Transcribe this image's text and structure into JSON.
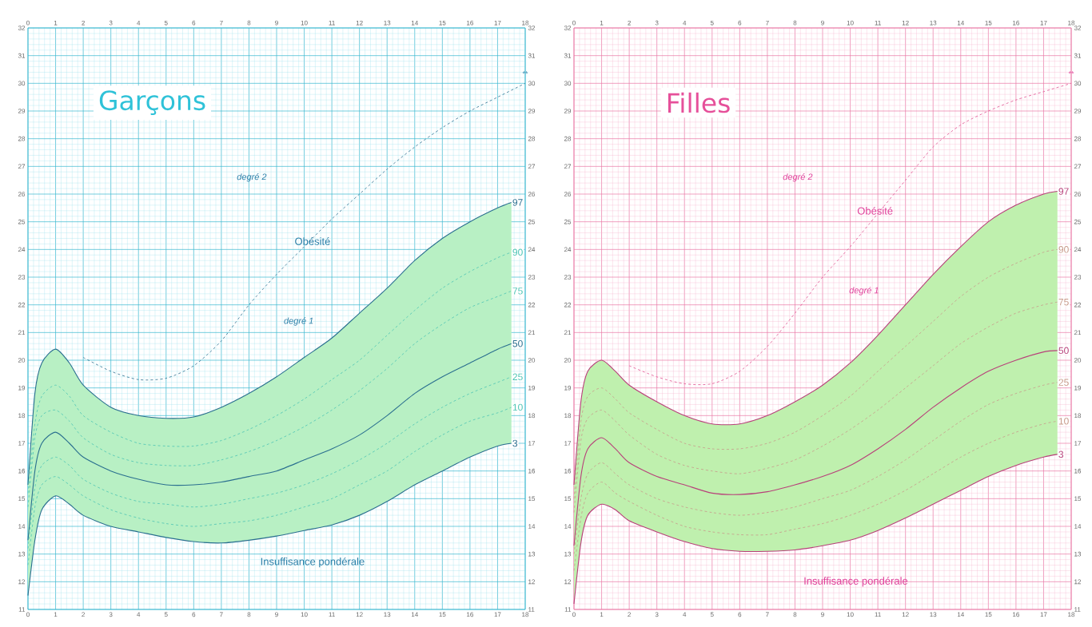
{
  "chart_data": [
    {
      "type": "line",
      "title": "Garçons",
      "annotations": [
        "degré 2",
        "Obésité",
        "degré 1",
        "Insuffisance pondérale",
        "**"
      ],
      "x": [
        0,
        0.25,
        0.5,
        1,
        1.5,
        2,
        3,
        4,
        5,
        6,
        7,
        8,
        9,
        10,
        11,
        12,
        13,
        14,
        15,
        16,
        17,
        17.5
      ],
      "xlim": [
        0,
        18
      ],
      "xticks": [
        0,
        1,
        2,
        3,
        4,
        5,
        6,
        7,
        8,
        9,
        10,
        11,
        12,
        13,
        14,
        15,
        16,
        17,
        18,
        {
          "value": 0.2,
          "label": null
        },
        {
          "value": 0.4,
          "label": null
        },
        {
          "value": 0.6,
          "label": null
        },
        {
          "value": 0.8,
          "label": null
        },
        {
          "value": 1.2,
          "label": null
        },
        {
          "value": 1.4,
          "label": null
        },
        {
          "value": 1.6,
          "label": null
        },
        {
          "value": 1.8,
          "label": null
        },
        {
          "value": 2.2,
          "label": null
        },
        {
          "value": 2.4,
          "label": null
        },
        {
          "value": 2.6,
          "label": null
        },
        {
          "value": 2.8,
          "label": null
        },
        {
          "value": 3.2,
          "label": null
        },
        {
          "value": 3.4,
          "label": null
        },
        {
          "value": 3.6,
          "label": null
        },
        {
          "value": 3.8,
          "label": null
        },
        {
          "value": 4.2,
          "label": null
        },
        {
          "value": 4.4,
          "label": null
        },
        {
          "value": 4.6,
          "label": null
        },
        {
          "value": 4.8,
          "label": null
        },
        {
          "value": 5.2,
          "label": null
        },
        {
          "value": 5.4,
          "label": null
        },
        {
          "value": 5.6,
          "label": null
        },
        {
          "value": 5.8,
          "label": null
        },
        {
          "value": 6.2,
          "label": null
        },
        {
          "value": 6.4,
          "label": null
        },
        {
          "value": 6.6,
          "label": null
        },
        {
          "value": 6.8,
          "label": null
        },
        {
          "value": 7.2,
          "label": null
        },
        {
          "value": 7.4,
          "label": null
        },
        {
          "value": 7.6,
          "label": null
        },
        {
          "value": 7.8,
          "label": null
        },
        {
          "value": 8.2,
          "label": null
        },
        {
          "value": 8.4,
          "label": null
        },
        {
          "value": 8.6,
          "label": null
        },
        {
          "value": 8.8,
          "label": null
        },
        {
          "value": 9.2,
          "label": null
        },
        {
          "value": 9.4,
          "label": null
        },
        {
          "value": 9.6,
          "label": null
        },
        {
          "value": 9.8,
          "label": null
        },
        {
          "value": 10.2,
          "label": null
        },
        {
          "value": 10.4,
          "label": null
        },
        {
          "value": 10.6,
          "label": null
        },
        {
          "value": 10.8,
          "label": null
        },
        {
          "value": 11.2,
          "label": null
        },
        {
          "value": 11.4,
          "label": null
        },
        {
          "value": 11.6,
          "label": null
        },
        {
          "value": 11.8,
          "label": null
        },
        {
          "value": 12.2,
          "label": null
        },
        {
          "value": 12.4,
          "label": null
        },
        {
          "value": 12.6,
          "label": null
        },
        {
          "value": 12.8,
          "label": null
        },
        {
          "value": 13.2,
          "label": null
        },
        {
          "value": 13.4,
          "label": null
        },
        {
          "value": 13.6,
          "label": null
        },
        {
          "value": 13.8,
          "label": null
        },
        {
          "value": 14.2,
          "label": null
        },
        {
          "value": 14.4,
          "label": null
        },
        {
          "value": 14.6,
          "label": null
        },
        {
          "value": 14.8,
          "label": null
        },
        {
          "value": 15.2,
          "label": null
        },
        {
          "value": 15.4,
          "label": null
        },
        {
          "value": 15.6,
          "label": null
        },
        {
          "value": 15.8,
          "label": null
        },
        {
          "value": 16.2,
          "label": null
        },
        {
          "value": 16.4,
          "label": null
        },
        {
          "value": 16.6,
          "label": null
        },
        {
          "value": 16.8,
          "label": null
        },
        {
          "value": 17.2,
          "label": null
        },
        {
          "value": 17.4,
          "label": null
        },
        {
          "value": 17.6,
          "label": null
        },
        {
          "value": 17.8,
          "label": null
        }
      ],
      "ylim": [
        11,
        32
      ],
      "yticks": [
        11,
        12,
        13,
        14,
        15,
        16,
        17,
        18,
        19,
        20,
        21,
        22,
        23,
        24,
        25,
        26,
        27,
        28,
        29,
        30,
        31,
        32,
        {
          "value": 11.2,
          "label": null
        },
        {
          "value": 11.4,
          "label": null
        },
        {
          "value": 11.6,
          "label": null
        },
        {
          "value": 11.8,
          "label": null
        },
        {
          "value": 12.2,
          "label": null
        },
        {
          "value": 12.4,
          "label": null
        },
        {
          "value": 12.6,
          "label": null
        },
        {
          "value": 12.8,
          "label": null
        },
        {
          "value": 13.2,
          "label": null
        },
        {
          "value": 13.4,
          "label": null
        },
        {
          "value": 13.6,
          "label": null
        },
        {
          "value": 13.8,
          "label": null
        },
        {
          "value": 14.2,
          "label": null
        },
        {
          "value": 14.4,
          "label": null
        },
        {
          "value": 14.6,
          "label": null
        },
        {
          "value": 14.8,
          "label": null
        },
        {
          "value": 15.2,
          "label": null
        },
        {
          "value": 15.4,
          "label": null
        },
        {
          "value": 15.6,
          "label": null
        },
        {
          "value": 15.8,
          "label": null
        },
        {
          "value": 16.2,
          "label": null
        },
        {
          "value": 16.4,
          "label": null
        },
        {
          "value": 16.6,
          "label": null
        },
        {
          "value": 16.8,
          "label": null
        },
        {
          "value": 17.2,
          "label": null
        },
        {
          "value": 17.4,
          "label": null
        },
        {
          "value": 17.6,
          "label": null
        },
        {
          "value": 17.8,
          "label": null
        },
        {
          "value": 18.2,
          "label": null
        },
        {
          "value": 18.4,
          "label": null
        },
        {
          "value": 18.6,
          "label": null
        },
        {
          "value": 18.8,
          "label": null
        },
        {
          "value": 19.2,
          "label": null
        },
        {
          "value": 19.4,
          "label": null
        },
        {
          "value": 19.6,
          "label": null
        },
        {
          "value": 19.8,
          "label": null
        },
        {
          "value": 20.2,
          "label": null
        },
        {
          "value": 20.4,
          "label": null
        },
        {
          "value": 20.6,
          "label": null
        },
        {
          "value": 20.8,
          "label": null
        },
        {
          "value": 21.2,
          "label": null
        },
        {
          "value": 21.4,
          "label": null
        },
        {
          "value": 21.6,
          "label": null
        },
        {
          "value": 21.8,
          "label": null
        },
        {
          "value": 22.2,
          "label": null
        },
        {
          "value": 22.4,
          "label": null
        },
        {
          "value": 22.6,
          "label": null
        },
        {
          "value": 22.8,
          "label": null
        },
        {
          "value": 23.2,
          "label": null
        },
        {
          "value": 23.4,
          "label": null
        },
        {
          "value": 23.6,
          "label": null
        },
        {
          "value": 23.8,
          "label": null
        },
        {
          "value": 24.2,
          "label": null
        },
        {
          "value": 24.4,
          "label": null
        },
        {
          "value": 24.6,
          "label": null
        },
        {
          "value": 24.8,
          "label": null
        },
        {
          "value": 25.2,
          "label": null
        },
        {
          "value": 25.4,
          "label": null
        },
        {
          "value": 25.6,
          "label": null
        },
        {
          "value": 25.8,
          "label": null
        },
        {
          "value": 26.2,
          "label": null
        },
        {
          "value": 26.4,
          "label": null
        },
        {
          "value": 26.6,
          "label": null
        },
        {
          "value": 26.8,
          "label": null
        },
        {
          "value": 27.2,
          "label": null
        },
        {
          "value": 27.4,
          "label": null
        },
        {
          "value": 27.6,
          "label": null
        },
        {
          "value": 27.8,
          "label": null
        },
        {
          "value": 28.2,
          "label": null
        },
        {
          "value": 28.4,
          "label": null
        },
        {
          "value": 28.6,
          "label": null
        },
        {
          "value": 28.8,
          "label": null
        },
        {
          "value": 29.2,
          "label": null
        },
        {
          "value": 29.4,
          "label": null
        },
        {
          "value": 29.6,
          "label": null
        },
        {
          "value": 29.8,
          "label": null
        },
        {
          "value": 30.2,
          "label": null
        },
        {
          "value": 30.4,
          "label": null
        },
        {
          "value": 30.6,
          "label": null
        },
        {
          "value": 30.8,
          "label": null
        },
        {
          "value": 31.2,
          "label": null
        },
        {
          "value": 31.4,
          "label": null
        },
        {
          "value": 31.6,
          "label": null
        },
        {
          "value": 31.8,
          "label": null
        }
      ],
      "x2lim": [
        0,
        18
      ],
      "x2ticks": [
        0,
        1,
        2,
        3,
        4,
        5,
        6,
        7,
        8,
        9,
        10,
        11,
        12,
        13,
        14,
        15,
        16,
        17,
        18
      ],
      "y2lim": [
        11,
        32
      ],
      "y2ticks": [
        11,
        12,
        13,
        14,
        15,
        16,
        17,
        18,
        19,
        20,
        21,
        22,
        23,
        24,
        25,
        26,
        27,
        28,
        29,
        30,
        31,
        32
      ],
      "grid": true,
      "series": [
        {
          "name": "97",
          "color": "#2a6f8f",
          "line_style": "solid",
          "values": [
            15.5,
            18.8,
            19.9,
            20.4,
            19.9,
            19.1,
            18.3,
            18.0,
            17.9,
            17.95,
            18.3,
            18.8,
            19.4,
            20.1,
            20.8,
            21.7,
            22.6,
            23.6,
            24.4,
            25.0,
            25.5,
            25.7
          ]
        },
        {
          "name": "90",
          "color": "#4cc4b4",
          "line_style": "dashed",
          "values": [
            15.2,
            17.7,
            18.7,
            19.1,
            18.7,
            18.0,
            17.4,
            17.0,
            16.9,
            16.9,
            17.1,
            17.5,
            18.0,
            18.6,
            19.3,
            20.0,
            20.9,
            21.8,
            22.6,
            23.2,
            23.7,
            23.9
          ]
        },
        {
          "name": "75",
          "color": "#4cc4b4",
          "line_style": "dashed",
          "values": [
            14.7,
            17.2,
            18.0,
            18.2,
            17.8,
            17.2,
            16.6,
            16.3,
            16.2,
            16.2,
            16.4,
            16.7,
            17.1,
            17.6,
            18.2,
            18.9,
            19.7,
            20.6,
            21.3,
            21.9,
            22.3,
            22.5
          ]
        },
        {
          "name": "50",
          "color": "#2a6f8f",
          "line_style": "solid",
          "values": [
            13.5,
            16.0,
            17.0,
            17.4,
            17.0,
            16.5,
            16.0,
            15.7,
            15.5,
            15.5,
            15.6,
            15.8,
            16.0,
            16.4,
            16.8,
            17.3,
            18.0,
            18.8,
            19.4,
            19.9,
            20.4,
            20.6
          ],
          "lower": [
            11.5,
            13.5,
            14.6,
            15.1,
            14.8,
            14.4,
            14.0,
            13.8,
            13.6,
            13.45,
            13.4,
            13.5,
            13.65,
            13.85,
            14.05,
            14.4,
            14.9,
            15.5,
            16.0,
            16.5,
            16.9,
            17.0
          ],
          "upper": [
            15.5,
            18.8,
            19.9,
            20.4,
            19.9,
            19.1,
            18.3,
            18.0,
            17.9,
            17.95,
            18.3,
            18.8,
            19.4,
            20.1,
            20.8,
            21.7,
            22.6,
            23.6,
            24.4,
            25.0,
            25.5,
            25.7
          ]
        },
        {
          "name": "25",
          "color": "#4cc4b4",
          "line_style": "dashed",
          "values": [
            13.2,
            15.4,
            16.2,
            16.5,
            16.2,
            15.7,
            15.2,
            14.9,
            14.8,
            14.7,
            14.8,
            15.0,
            15.2,
            15.5,
            15.9,
            16.4,
            17.0,
            17.7,
            18.3,
            18.8,
            19.2,
            19.4
          ]
        },
        {
          "name": "10",
          "color": "#4cc4b4",
          "line_style": "dashed",
          "values": [
            12.6,
            14.7,
            15.5,
            15.8,
            15.5,
            15.1,
            14.6,
            14.3,
            14.1,
            14.0,
            14.1,
            14.2,
            14.4,
            14.7,
            15.0,
            15.5,
            16.0,
            16.7,
            17.3,
            17.8,
            18.1,
            18.3
          ]
        },
        {
          "name": "3",
          "color": "#2a6f8f",
          "line_style": "solid",
          "values": [
            11.5,
            13.5,
            14.6,
            15.1,
            14.8,
            14.4,
            14.0,
            13.8,
            13.6,
            13.45,
            13.4,
            13.5,
            13.65,
            13.85,
            14.05,
            14.4,
            14.9,
            15.5,
            16.0,
            16.5,
            16.9,
            17.0
          ]
        },
        {
          "color": "#2a6f8f",
          "line_style": "dashed",
          "x": [
            2,
            3,
            4,
            5,
            6,
            7,
            8,
            9,
            10,
            11,
            12,
            13,
            14,
            15,
            16,
            17,
            18
          ],
          "values": [
            20.1,
            19.6,
            19.3,
            19.35,
            19.8,
            20.7,
            22.0,
            23.1,
            24.1,
            25.1,
            26.0,
            26.9,
            27.7,
            28.4,
            29.0,
            29.5,
            30.0
          ]
        }
      ]
    },
    {
      "type": "line",
      "title": "Filles",
      "annotations": [
        "degré 2",
        "Obésité",
        "degré 1",
        "Insuffisance pondérale",
        "**"
      ],
      "x": [
        0,
        0.25,
        0.5,
        1,
        1.5,
        2,
        3,
        4,
        5,
        6,
        7,
        8,
        9,
        10,
        11,
        12,
        13,
        14,
        15,
        16,
        17,
        17.5
      ],
      "xlim": [
        0,
        18
      ],
      "xticks": [
        0,
        1,
        2,
        3,
        4,
        5,
        6,
        7,
        8,
        9,
        10,
        11,
        12,
        13,
        14,
        15,
        16,
        17,
        18,
        {
          "value": 0.2,
          "label": null
        },
        {
          "value": 0.4,
          "label": null
        },
        {
          "value": 0.6,
          "label": null
        },
        {
          "value": 0.8,
          "label": null
        },
        {
          "value": 1.2,
          "label": null
        },
        {
          "value": 1.4,
          "label": null
        },
        {
          "value": 1.6,
          "label": null
        },
        {
          "value": 1.8,
          "label": null
        },
        {
          "value": 2.2,
          "label": null
        },
        {
          "value": 2.4,
          "label": null
        },
        {
          "value": 2.6,
          "label": null
        },
        {
          "value": 2.8,
          "label": null
        },
        {
          "value": 3.2,
          "label": null
        },
        {
          "value": 3.4,
          "label": null
        },
        {
          "value": 3.6,
          "label": null
        },
        {
          "value": 3.8,
          "label": null
        },
        {
          "value": 4.2,
          "label": null
        },
        {
          "value": 4.4,
          "label": null
        },
        {
          "value": 4.6,
          "label": null
        },
        {
          "value": 4.8,
          "label": null
        },
        {
          "value": 5.2,
          "label": null
        },
        {
          "value": 5.4,
          "label": null
        },
        {
          "value": 5.6,
          "label": null
        },
        {
          "value": 5.8,
          "label": null
        },
        {
          "value": 6.2,
          "label": null
        },
        {
          "value": 6.4,
          "label": null
        },
        {
          "value": 6.6,
          "label": null
        },
        {
          "value": 6.8,
          "label": null
        },
        {
          "value": 7.2,
          "label": null
        },
        {
          "value": 7.4,
          "label": null
        },
        {
          "value": 7.6,
          "label": null
        },
        {
          "value": 7.8,
          "label": null
        },
        {
          "value": 8.2,
          "label": null
        },
        {
          "value": 8.4,
          "label": null
        },
        {
          "value": 8.6,
          "label": null
        },
        {
          "value": 8.8,
          "label": null
        },
        {
          "value": 9.2,
          "label": null
        },
        {
          "value": 9.4,
          "label": null
        },
        {
          "value": 9.6,
          "label": null
        },
        {
          "value": 9.8,
          "label": null
        },
        {
          "value": 10.2,
          "label": null
        },
        {
          "value": 10.4,
          "label": null
        },
        {
          "value": 10.6,
          "label": null
        },
        {
          "value": 10.8,
          "label": null
        },
        {
          "value": 11.2,
          "label": null
        },
        {
          "value": 11.4,
          "label": null
        },
        {
          "value": 11.6,
          "label": null
        },
        {
          "value": 11.8,
          "label": null
        },
        {
          "value": 12.2,
          "label": null
        },
        {
          "value": 12.4,
          "label": null
        },
        {
          "value": 12.6,
          "label": null
        },
        {
          "value": 12.8,
          "label": null
        },
        {
          "value": 13.2,
          "label": null
        },
        {
          "value": 13.4,
          "label": null
        },
        {
          "value": 13.6,
          "label": null
        },
        {
          "value": 13.8,
          "label": null
        },
        {
          "value": 14.2,
          "label": null
        },
        {
          "value": 14.4,
          "label": null
        },
        {
          "value": 14.6,
          "label": null
        },
        {
          "value": 14.8,
          "label": null
        },
        {
          "value": 15.2,
          "label": null
        },
        {
          "value": 15.4,
          "label": null
        },
        {
          "value": 15.6,
          "label": null
        },
        {
          "value": 15.8,
          "label": null
        },
        {
          "value": 16.2,
          "label": null
        },
        {
          "value": 16.4,
          "label": null
        },
        {
          "value": 16.6,
          "label": null
        },
        {
          "value": 16.8,
          "label": null
        },
        {
          "value": 17.2,
          "label": null
        },
        {
          "value": 17.4,
          "label": null
        },
        {
          "value": 17.6,
          "label": null
        },
        {
          "value": 17.8,
          "label": null
        }
      ],
      "ylim": [
        11,
        32
      ],
      "yticks": [
        11,
        12,
        13,
        14,
        15,
        16,
        17,
        18,
        19,
        20,
        21,
        22,
        23,
        24,
        25,
        26,
        27,
        28,
        29,
        30,
        31,
        32,
        {
          "value": 11.2,
          "label": null
        },
        {
          "value": 11.4,
          "label": null
        },
        {
          "value": 11.6,
          "label": null
        },
        {
          "value": 11.8,
          "label": null
        },
        {
          "value": 12.2,
          "label": null
        },
        {
          "value": 12.4,
          "label": null
        },
        {
          "value": 12.6,
          "label": null
        },
        {
          "value": 12.8,
          "label": null
        },
        {
          "value": 13.2,
          "label": null
        },
        {
          "value": 13.4,
          "label": null
        },
        {
          "value": 13.6,
          "label": null
        },
        {
          "value": 13.8,
          "label": null
        },
        {
          "value": 14.2,
          "label": null
        },
        {
          "value": 14.4,
          "label": null
        },
        {
          "value": 14.6,
          "label": null
        },
        {
          "value": 14.8,
          "label": null
        },
        {
          "value": 15.2,
          "label": null
        },
        {
          "value": 15.4,
          "label": null
        },
        {
          "value": 15.6,
          "label": null
        },
        {
          "value": 15.8,
          "label": null
        },
        {
          "value": 16.2,
          "label": null
        },
        {
          "value": 16.4,
          "label": null
        },
        {
          "value": 16.6,
          "label": null
        },
        {
          "value": 16.8,
          "label": null
        },
        {
          "value": 17.2,
          "label": null
        },
        {
          "value": 17.4,
          "label": null
        },
        {
          "value": 17.6,
          "label": null
        },
        {
          "value": 17.8,
          "label": null
        },
        {
          "value": 18.2,
          "label": null
        },
        {
          "value": 18.4,
          "label": null
        },
        {
          "value": 18.6,
          "label": null
        },
        {
          "value": 18.8,
          "label": null
        },
        {
          "value": 19.2,
          "label": null
        },
        {
          "value": 19.4,
          "label": null
        },
        {
          "value": 19.6,
          "label": null
        },
        {
          "value": 19.8,
          "label": null
        },
        {
          "value": 20.2,
          "label": null
        },
        {
          "value": 20.4,
          "label": null
        },
        {
          "value": 20.6,
          "label": null
        },
        {
          "value": 20.8,
          "label": null
        },
        {
          "value": 21.2,
          "label": null
        },
        {
          "value": 21.4,
          "label": null
        },
        {
          "value": 21.6,
          "label": null
        },
        {
          "value": 21.8,
          "label": null
        },
        {
          "value": 22.2,
          "label": null
        },
        {
          "value": 22.4,
          "label": null
        },
        {
          "value": 22.6,
          "label": null
        },
        {
          "value": 22.8,
          "label": null
        },
        {
          "value": 23.2,
          "label": null
        },
        {
          "value": 23.4,
          "label": null
        },
        {
          "value": 23.6,
          "label": null
        },
        {
          "value": 23.8,
          "label": null
        },
        {
          "value": 24.2,
          "label": null
        },
        {
          "value": 24.4,
          "label": null
        },
        {
          "value": 24.6,
          "label": null
        },
        {
          "value": 24.8,
          "label": null
        },
        {
          "value": 25.2,
          "label": null
        },
        {
          "value": 25.4,
          "label": null
        },
        {
          "value": 25.6,
          "label": null
        },
        {
          "value": 25.8,
          "label": null
        },
        {
          "value": 26.2,
          "label": null
        },
        {
          "value": 26.4,
          "label": null
        },
        {
          "value": 26.6,
          "label": null
        },
        {
          "value": 26.8,
          "label": null
        },
        {
          "value": 27.2,
          "label": null
        },
        {
          "value": 27.4,
          "label": null
        },
        {
          "value": 27.6,
          "label": null
        },
        {
          "value": 27.8,
          "label": null
        },
        {
          "value": 28.2,
          "label": null
        },
        {
          "value": 28.4,
          "label": null
        },
        {
          "value": 28.6,
          "label": null
        },
        {
          "value": 28.8,
          "label": null
        },
        {
          "value": 29.2,
          "label": null
        },
        {
          "value": 29.4,
          "label": null
        },
        {
          "value": 29.6,
          "label": null
        },
        {
          "value": 29.8,
          "label": null
        },
        {
          "value": 30.2,
          "label": null
        },
        {
          "value": 30.4,
          "label": null
        },
        {
          "value": 30.6,
          "label": null
        },
        {
          "value": 30.8,
          "label": null
        },
        {
          "value": 31.2,
          "label": null
        },
        {
          "value": 31.4,
          "label": null
        },
        {
          "value": 31.6,
          "label": null
        },
        {
          "value": 31.8,
          "label": null
        }
      ],
      "x2lim": [
        0,
        18
      ],
      "x2ticks": [
        0,
        1,
        2,
        3,
        4,
        5,
        6,
        7,
        8,
        9,
        10,
        11,
        12,
        13,
        14,
        15,
        16,
        17,
        18
      ],
      "y2lim": [
        11,
        32
      ],
      "y2ticks": [
        11,
        12,
        13,
        14,
        15,
        16,
        17,
        18,
        19,
        20,
        21,
        22,
        23,
        24,
        25,
        26,
        27,
        28,
        29,
        30,
        31,
        32
      ],
      "grid": true,
      "series": [
        {
          "name": "97",
          "color": "#b8407a",
          "line_style": "solid",
          "values": [
            15.5,
            18.5,
            19.6,
            20.0,
            19.6,
            19.1,
            18.5,
            18.0,
            17.7,
            17.7,
            18.0,
            18.5,
            19.1,
            19.9,
            20.9,
            22.0,
            23.1,
            24.1,
            25.0,
            25.6,
            26.0,
            26.1
          ]
        },
        {
          "name": "90",
          "color": "#c89a8a",
          "line_style": "dashed",
          "values": [
            15.0,
            17.8,
            18.7,
            19.0,
            18.6,
            18.1,
            17.5,
            17.0,
            16.8,
            16.8,
            17.0,
            17.4,
            18.0,
            18.7,
            19.6,
            20.5,
            21.4,
            22.3,
            23.0,
            23.5,
            23.9,
            24.0
          ]
        },
        {
          "name": "75",
          "color": "#c89a8a",
          "line_style": "dashed",
          "values": [
            14.5,
            17.1,
            17.9,
            18.2,
            17.8,
            17.3,
            16.6,
            16.2,
            16.0,
            15.9,
            16.1,
            16.4,
            16.9,
            17.5,
            18.2,
            19.0,
            19.8,
            20.6,
            21.2,
            21.7,
            22.0,
            22.1
          ]
        },
        {
          "name": "50",
          "color": "#b8407a",
          "line_style": "solid",
          "values": [
            13.3,
            15.8,
            16.8,
            17.2,
            16.8,
            16.3,
            15.8,
            15.5,
            15.2,
            15.15,
            15.25,
            15.5,
            15.8,
            16.2,
            16.8,
            17.5,
            18.3,
            19.0,
            19.6,
            20.0,
            20.3,
            20.35
          ],
          "lower": [
            11.2,
            13.4,
            14.4,
            14.8,
            14.6,
            14.2,
            13.8,
            13.45,
            13.2,
            13.1,
            13.1,
            13.15,
            13.3,
            13.5,
            13.85,
            14.3,
            14.8,
            15.3,
            15.8,
            16.2,
            16.5,
            16.6
          ],
          "upper": [
            15.5,
            18.5,
            19.6,
            20.0,
            19.6,
            19.1,
            18.5,
            18.0,
            17.7,
            17.7,
            18.0,
            18.5,
            19.1,
            19.9,
            20.9,
            22.0,
            23.1,
            24.1,
            25.0,
            25.6,
            26.0,
            26.1
          ]
        },
        {
          "name": "25",
          "color": "#c89a8a",
          "line_style": "dashed",
          "values": [
            13.0,
            15.0,
            15.9,
            16.3,
            15.9,
            15.5,
            15.0,
            14.7,
            14.5,
            14.4,
            14.5,
            14.7,
            15.0,
            15.3,
            15.8,
            16.4,
            17.1,
            17.8,
            18.4,
            18.8,
            19.1,
            19.2
          ]
        },
        {
          "name": "10",
          "color": "#c89a8a",
          "line_style": "dashed",
          "values": [
            12.4,
            14.3,
            15.2,
            15.6,
            15.2,
            14.9,
            14.4,
            14.0,
            13.8,
            13.7,
            13.7,
            13.9,
            14.1,
            14.4,
            14.8,
            15.3,
            15.9,
            16.5,
            17.0,
            17.4,
            17.7,
            17.8
          ]
        },
        {
          "name": "3",
          "color": "#b8407a",
          "line_style": "solid",
          "values": [
            11.2,
            13.4,
            14.4,
            14.8,
            14.6,
            14.2,
            13.8,
            13.45,
            13.2,
            13.1,
            13.1,
            13.15,
            13.3,
            13.5,
            13.85,
            14.3,
            14.8,
            15.3,
            15.8,
            16.2,
            16.5,
            16.6
          ]
        },
        {
          "color": "#e0508f",
          "line_style": "dashed",
          "x": [
            2,
            3,
            4,
            5,
            6,
            7,
            8,
            9,
            10,
            11,
            12,
            13,
            14,
            15,
            16,
            17,
            18
          ],
          "values": [
            19.8,
            19.4,
            19.15,
            19.15,
            19.6,
            20.5,
            21.7,
            23.0,
            24.1,
            25.3,
            26.5,
            27.7,
            28.5,
            29.0,
            29.4,
            29.7,
            30.0
          ]
        }
      ]
    }
  ]
}
